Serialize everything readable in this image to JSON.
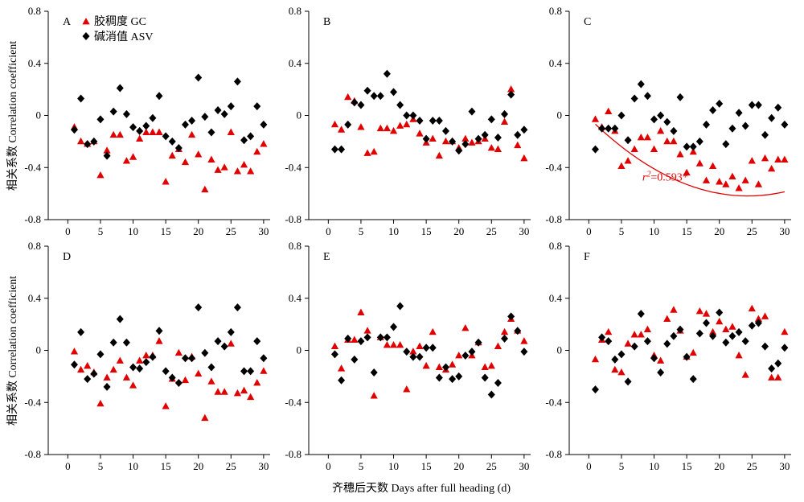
{
  "xlabel": "齐穗后天数 Days after full heading (d)",
  "ylabel": "相关系数 Correlation coefficient",
  "legend": {
    "gc": "胶稠度 GC",
    "asv": "碱消值 ASV"
  },
  "colors": {
    "gc": "#e00000",
    "asv": "#000000",
    "fit": "#e00000"
  },
  "chart_data": [
    {
      "type": "scatter",
      "label": "A",
      "xlim": [
        -3,
        31
      ],
      "ylim": [
        -0.8,
        0.8
      ],
      "xticks": [
        0,
        5,
        10,
        15,
        20,
        25,
        30
      ],
      "yticks": [
        -0.8,
        -0.4,
        0,
        0.4,
        0.8
      ],
      "series": [
        {
          "name": "胶稠度 GC",
          "marker": "triangle",
          "x": [
            1,
            2,
            3,
            4,
            5,
            6,
            7,
            8,
            9,
            10,
            11,
            12,
            13,
            14,
            15,
            16,
            17,
            18,
            19,
            20,
            21,
            22,
            23,
            24,
            25,
            26,
            27,
            28,
            29,
            30
          ],
          "y": [
            -0.09,
            -0.2,
            -0.22,
            -0.2,
            -0.46,
            -0.27,
            -0.15,
            -0.15,
            -0.35,
            -0.32,
            -0.18,
            -0.13,
            -0.13,
            -0.13,
            -0.51,
            -0.31,
            -0.26,
            -0.36,
            -0.15,
            -0.3,
            -0.57,
            -0.34,
            -0.42,
            -0.4,
            -0.13,
            -0.43,
            -0.38,
            -0.43,
            -0.28,
            -0.22
          ]
        },
        {
          "name": "碱消值 ASV",
          "marker": "diamond",
          "x": [
            1,
            2,
            3,
            4,
            5,
            6,
            7,
            8,
            9,
            10,
            11,
            12,
            13,
            14,
            15,
            16,
            17,
            18,
            19,
            20,
            21,
            22,
            23,
            24,
            25,
            26,
            27,
            28,
            29,
            30
          ],
          "y": [
            -0.11,
            0.13,
            -0.22,
            -0.2,
            -0.03,
            -0.31,
            0.03,
            0.21,
            0.01,
            -0.09,
            -0.12,
            -0.08,
            -0.02,
            0.15,
            -0.16,
            -0.2,
            -0.25,
            -0.07,
            -0.04,
            0.29,
            -0.01,
            -0.13,
            0.04,
            0.01,
            0.07,
            0.26,
            -0.19,
            -0.16,
            0.07,
            -0.07
          ]
        }
      ]
    },
    {
      "type": "scatter",
      "label": "B",
      "xlim": [
        -3,
        31
      ],
      "ylim": [
        -0.8,
        0.8
      ],
      "xticks": [
        0,
        5,
        10,
        15,
        20,
        25,
        30
      ],
      "yticks": [
        -0.8,
        -0.4,
        0,
        0.4,
        0.8
      ],
      "series": [
        {
          "name": "胶稠度 GC",
          "marker": "triangle",
          "x": [
            1,
            2,
            3,
            4,
            5,
            6,
            7,
            8,
            9,
            10,
            11,
            12,
            13,
            14,
            15,
            16,
            17,
            18,
            19,
            20,
            21,
            22,
            23,
            24,
            25,
            26,
            27,
            28,
            29,
            30
          ],
          "y": [
            -0.07,
            -0.11,
            0.14,
            0.11,
            -0.09,
            -0.29,
            -0.28,
            -0.1,
            -0.1,
            -0.12,
            -0.08,
            -0.07,
            -0.03,
            -0.14,
            -0.21,
            -0.18,
            -0.31,
            -0.2,
            -0.2,
            -0.25,
            -0.18,
            -0.21,
            -0.2,
            -0.18,
            -0.25,
            -0.26,
            -0.05,
            0.2,
            -0.23,
            -0.33
          ]
        },
        {
          "name": "碱消值 ASV",
          "marker": "diamond",
          "x": [
            1,
            2,
            3,
            4,
            5,
            6,
            7,
            8,
            9,
            10,
            11,
            12,
            13,
            14,
            15,
            16,
            17,
            18,
            19,
            20,
            21,
            22,
            23,
            24,
            25,
            26,
            27,
            28,
            29,
            30
          ],
          "y": [
            -0.26,
            -0.26,
            -0.07,
            0.1,
            0.08,
            0.19,
            0.15,
            0.15,
            0.32,
            0.18,
            0.08,
            0.0,
            0.0,
            -0.04,
            -0.18,
            -0.04,
            -0.04,
            -0.12,
            -0.2,
            -0.27,
            -0.22,
            0.03,
            -0.18,
            -0.15,
            -0.03,
            -0.17,
            0.01,
            0.16,
            -0.15,
            -0.11
          ]
        }
      ]
    },
    {
      "type": "scatter",
      "label": "C",
      "xlim": [
        -3,
        31
      ],
      "ylim": [
        -0.8,
        0.8
      ],
      "xticks": [
        0,
        5,
        10,
        15,
        20,
        25,
        30
      ],
      "yticks": [
        -0.8,
        -0.4,
        0,
        0.4,
        0.8
      ],
      "annotation": {
        "r_symbol": "r",
        "superscript": "2",
        "value": "=0.593*"
      },
      "fit_x_range": [
        1,
        30
      ],
      "fit": {
        "a": 0.00101,
        "b": -0.0492,
        "c": -0.019
      },
      "series": [
        {
          "name": "胶稠度 GC",
          "marker": "triangle",
          "x": [
            1,
            2,
            3,
            4,
            5,
            6,
            7,
            8,
            9,
            10,
            11,
            12,
            13,
            14,
            15,
            16,
            17,
            18,
            19,
            20,
            21,
            22,
            23,
            24,
            25,
            26,
            27,
            28,
            29,
            30
          ],
          "y": [
            -0.03,
            -0.09,
            0.03,
            -0.12,
            -0.39,
            -0.35,
            -0.26,
            -0.17,
            -0.17,
            -0.26,
            -0.12,
            -0.2,
            -0.2,
            -0.3,
            -0.44,
            -0.28,
            -0.37,
            -0.5,
            -0.39,
            -0.51,
            -0.53,
            -0.47,
            -0.56,
            -0.5,
            -0.35,
            -0.53,
            -0.33,
            -0.41,
            -0.34,
            -0.34
          ]
        },
        {
          "name": "碱消值 ASV",
          "marker": "diamond",
          "x": [
            1,
            2,
            3,
            4,
            5,
            6,
            7,
            8,
            9,
            10,
            11,
            12,
            13,
            14,
            15,
            16,
            17,
            18,
            19,
            20,
            21,
            22,
            23,
            24,
            25,
            26,
            27,
            28,
            29,
            30
          ],
          "y": [
            -0.26,
            -0.1,
            -0.1,
            -0.1,
            0.0,
            -0.19,
            0.13,
            0.24,
            0.15,
            -0.03,
            0.0,
            -0.05,
            -0.12,
            0.14,
            -0.24,
            -0.24,
            -0.2,
            -0.07,
            0.04,
            0.09,
            -0.22,
            -0.1,
            0.02,
            -0.08,
            0.08,
            0.08,
            -0.15,
            -0.02,
            0.06,
            -0.07
          ]
        }
      ]
    },
    {
      "type": "scatter",
      "label": "D",
      "xlim": [
        -3,
        31
      ],
      "ylim": [
        -0.8,
        0.8
      ],
      "xticks": [
        0,
        5,
        10,
        15,
        20,
        25,
        30
      ],
      "yticks": [
        -0.8,
        -0.4,
        0,
        0.4,
        0.8
      ],
      "series": [
        {
          "name": "胶稠度 GC",
          "marker": "triangle",
          "x": [
            1,
            2,
            3,
            4,
            5,
            6,
            7,
            8,
            9,
            10,
            11,
            12,
            13,
            14,
            15,
            16,
            17,
            18,
            19,
            20,
            21,
            22,
            23,
            24,
            25,
            26,
            27,
            28,
            29,
            30
          ],
          "y": [
            -0.01,
            -0.15,
            -0.12,
            -0.17,
            -0.41,
            -0.21,
            -0.15,
            -0.08,
            -0.21,
            -0.27,
            -0.08,
            -0.04,
            -0.04,
            0.07,
            -0.43,
            -0.22,
            -0.02,
            -0.23,
            -0.05,
            -0.18,
            -0.52,
            -0.24,
            -0.32,
            -0.32,
            0.05,
            -0.33,
            -0.31,
            -0.36,
            -0.25,
            -0.16
          ]
        },
        {
          "name": "碱消值 ASV",
          "marker": "diamond",
          "x": [
            1,
            2,
            3,
            4,
            5,
            6,
            7,
            8,
            9,
            10,
            11,
            12,
            13,
            14,
            15,
            16,
            17,
            18,
            19,
            20,
            21,
            22,
            23,
            24,
            25,
            26,
            27,
            28,
            29,
            30
          ],
          "y": [
            -0.11,
            0.14,
            -0.22,
            -0.18,
            -0.03,
            -0.28,
            0.06,
            0.24,
            0.06,
            -0.13,
            -0.14,
            -0.09,
            -0.05,
            0.15,
            -0.16,
            -0.21,
            -0.25,
            -0.06,
            -0.06,
            0.33,
            -0.02,
            -0.13,
            0.07,
            0.03,
            0.14,
            0.33,
            -0.16,
            -0.16,
            0.07,
            -0.06
          ]
        }
      ]
    },
    {
      "type": "scatter",
      "label": "E",
      "xlim": [
        -3,
        31
      ],
      "ylim": [
        -0.8,
        0.8
      ],
      "xticks": [
        0,
        5,
        10,
        15,
        20,
        25,
        30
      ],
      "yticks": [
        -0.8,
        -0.4,
        0,
        0.4,
        0.8
      ],
      "series": [
        {
          "name": "胶稠度 GC",
          "marker": "triangle",
          "x": [
            1,
            2,
            3,
            4,
            5,
            6,
            7,
            8,
            9,
            10,
            11,
            12,
            13,
            14,
            15,
            16,
            17,
            18,
            19,
            20,
            21,
            22,
            23,
            24,
            25,
            26,
            27,
            28,
            29,
            30
          ],
          "y": [
            0.03,
            -0.14,
            0.08,
            0.08,
            0.29,
            0.15,
            -0.35,
            0.1,
            0.04,
            0.04,
            0.04,
            -0.3,
            -0.01,
            0.03,
            -0.12,
            0.14,
            -0.13,
            -0.15,
            -0.11,
            -0.04,
            0.17,
            -0.04,
            0.06,
            -0.13,
            -0.12,
            0.03,
            0.14,
            0.24,
            0.15,
            0.07
          ]
        },
        {
          "name": "碱消值 ASV",
          "marker": "diamond",
          "x": [
            1,
            2,
            3,
            4,
            5,
            6,
            7,
            8,
            9,
            10,
            11,
            12,
            13,
            14,
            15,
            16,
            17,
            18,
            19,
            20,
            21,
            22,
            23,
            24,
            25,
            26,
            27,
            28,
            29,
            30
          ],
          "y": [
            -0.03,
            -0.23,
            0.09,
            -0.07,
            0.07,
            0.1,
            -0.17,
            0.1,
            0.1,
            0.18,
            0.34,
            -0.01,
            -0.05,
            -0.05,
            0.02,
            0.02,
            -0.21,
            -0.13,
            -0.22,
            -0.2,
            -0.04,
            -0.01,
            0.06,
            -0.21,
            -0.34,
            -0.25,
            0.09,
            0.26,
            0.15,
            -0.01
          ]
        }
      ]
    },
    {
      "type": "scatter",
      "label": "F",
      "xlim": [
        -3,
        31
      ],
      "ylim": [
        -0.8,
        0.8
      ],
      "xticks": [
        0,
        5,
        10,
        15,
        20,
        25,
        30
      ],
      "yticks": [
        -0.8,
        -0.4,
        0,
        0.4,
        0.8
      ],
      "series": [
        {
          "name": "胶稠度 GC",
          "marker": "triangle",
          "x": [
            1,
            2,
            3,
            4,
            5,
            6,
            7,
            8,
            9,
            10,
            11,
            12,
            13,
            14,
            15,
            16,
            17,
            18,
            19,
            20,
            21,
            22,
            23,
            24,
            25,
            26,
            27,
            28,
            29,
            30
          ],
          "y": [
            -0.07,
            0.08,
            0.14,
            -0.15,
            -0.17,
            0.05,
            0.12,
            0.12,
            0.16,
            -0.04,
            -0.08,
            0.24,
            0.31,
            0.15,
            -0.05,
            -0.02,
            0.3,
            0.28,
            0.14,
            0.22,
            0.16,
            0.18,
            -0.04,
            -0.19,
            0.32,
            0.24,
            0.26,
            -0.21,
            -0.21,
            0.14
          ]
        },
        {
          "name": "碱消值 ASV",
          "marker": "diamond",
          "x": [
            1,
            2,
            3,
            4,
            5,
            6,
            7,
            8,
            9,
            10,
            11,
            12,
            13,
            14,
            15,
            16,
            17,
            18,
            19,
            20,
            21,
            22,
            23,
            24,
            25,
            26,
            27,
            28,
            29,
            30
          ],
          "y": [
            -0.3,
            0.1,
            0.07,
            -0.07,
            -0.03,
            -0.24,
            0.03,
            0.28,
            0.07,
            -0.06,
            -0.17,
            0.05,
            0.11,
            0.16,
            -0.05,
            -0.22,
            0.13,
            0.21,
            0.11,
            0.29,
            0.06,
            0.11,
            0.14,
            0.07,
            0.19,
            0.21,
            0.03,
            -0.14,
            -0.1,
            0.02
          ]
        }
      ]
    }
  ]
}
